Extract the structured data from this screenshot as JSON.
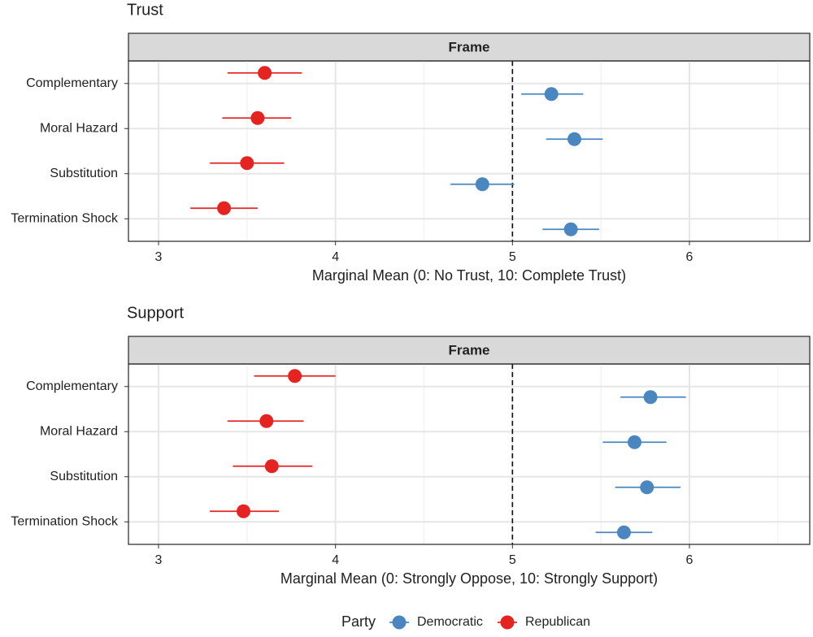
{
  "chart_data": [
    {
      "type": "dotplot",
      "title": "Trust",
      "strip": "Frame",
      "x_label": "Marginal Mean (0: No Trust, 10: Complete Trust)",
      "categories": [
        "Complementary",
        "Moral Hazard",
        "Substitution",
        "Termination Shock"
      ],
      "series": [
        {
          "name": "Democratic",
          "color": "#4a86bf",
          "values": [
            5.22,
            5.35,
            4.83,
            5.33
          ],
          "lower": [
            5.05,
            5.19,
            4.65,
            5.17
          ],
          "upper": [
            5.4,
            5.51,
            5.01,
            5.49
          ]
        },
        {
          "name": "Republican",
          "color": "#e52421",
          "values": [
            3.6,
            3.56,
            3.5,
            3.37
          ],
          "lower": [
            3.39,
            3.36,
            3.29,
            3.18
          ],
          "upper": [
            3.81,
            3.75,
            3.71,
            3.56
          ]
        }
      ],
      "xlim": [
        2.83,
        6.68
      ],
      "xticks": [
        3,
        4,
        5,
        6
      ],
      "vline": 5,
      "grid": true
    },
    {
      "type": "dotplot",
      "title": "Support",
      "strip": "Frame",
      "x_label": "Marginal Mean (0: Strongly Oppose, 10: Strongly Support)",
      "categories": [
        "Complementary",
        "Moral Hazard",
        "Substitution",
        "Termination Shock"
      ],
      "series": [
        {
          "name": "Democratic",
          "color": "#4a86bf",
          "values": [
            5.78,
            5.69,
            5.76,
            5.63
          ],
          "lower": [
            5.61,
            5.51,
            5.58,
            5.47
          ],
          "upper": [
            5.98,
            5.87,
            5.95,
            5.79
          ]
        },
        {
          "name": "Republican",
          "color": "#e52421",
          "values": [
            3.77,
            3.61,
            3.64,
            3.48
          ],
          "lower": [
            3.54,
            3.39,
            3.42,
            3.29
          ],
          "upper": [
            4.0,
            3.82,
            3.87,
            3.68
          ]
        }
      ],
      "xlim": [
        2.83,
        6.68
      ],
      "xticks": [
        3,
        4,
        5,
        6
      ],
      "vline": 5,
      "grid": true
    }
  ],
  "legend_title": "Party"
}
